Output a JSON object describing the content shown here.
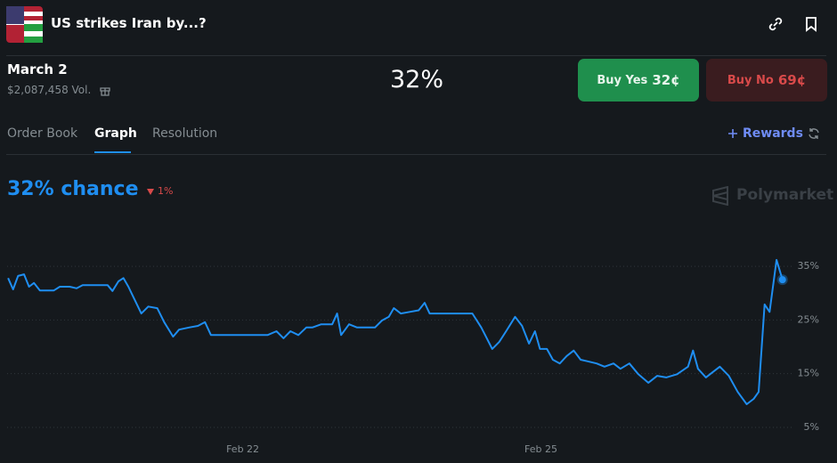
{
  "header": {
    "title": "US strikes Iran by...?"
  },
  "market": {
    "date": "March 2",
    "volume": "$2,087,458 Vol.",
    "probability": "32%",
    "buy_yes": {
      "label": "Buy Yes",
      "price": "32¢"
    },
    "buy_no": {
      "label": "Buy No",
      "price": "69¢"
    }
  },
  "tabs": [
    "Order Book",
    "Graph",
    "Resolution"
  ],
  "rewards": "Rewards",
  "chance": "32% chance",
  "change": "1%",
  "brand": "Polymarket",
  "chart_data": {
    "type": "line",
    "color": "#1f8ef1",
    "x": [
      19.64,
      19.69,
      19.74,
      19.8,
      19.85,
      19.9,
      19.96,
      20.1,
      20.16,
      20.26,
      20.33,
      20.39,
      20.64,
      20.69,
      20.75,
      20.8,
      20.85,
      20.91,
      20.98,
      21.05,
      21.14,
      21.21,
      21.3,
      21.36,
      21.46,
      21.55,
      21.62,
      21.68,
      21.8,
      22.25,
      22.34,
      22.41,
      22.48,
      22.56,
      22.64,
      22.7,
      22.79,
      22.9,
      22.95,
      22.99,
      23.07,
      23.15,
      23.33,
      23.4,
      23.47,
      23.52,
      23.59,
      23.68,
      23.77,
      23.83,
      23.88,
      24.31,
      24.4,
      24.51,
      24.58,
      24.65,
      24.74,
      24.81,
      24.88,
      24.94,
      24.99,
      25.06,
      25.12,
      25.19,
      25.26,
      25.33,
      25.4,
      25.47,
      25.56,
      25.64,
      25.73,
      25.8,
      25.89,
      25.98,
      26.08,
      26.17,
      26.26,
      26.37,
      26.48,
      26.53,
      26.58,
      26.66,
      26.73,
      26.8,
      26.89,
      26.98,
      27.07,
      27.14,
      27.19,
      27.25,
      27.3,
      27.37,
      27.43
    ],
    "values": [
      32.8,
      30.7,
      33.2,
      33.5,
      31.2,
      31.9,
      30.5,
      30.5,
      31.2,
      31.2,
      30.9,
      31.5,
      31.5,
      30.4,
      32.2,
      32.8,
      31.2,
      28.9,
      26.2,
      27.5,
      27.2,
      24.6,
      21.9,
      23.2,
      23.6,
      23.9,
      24.6,
      22.2,
      22.2,
      22.2,
      22.9,
      21.6,
      22.9,
      22.2,
      23.6,
      23.6,
      24.2,
      24.2,
      26.2,
      22.2,
      24.2,
      23.6,
      23.6,
      24.9,
      25.6,
      27.2,
      26.2,
      26.5,
      26.8,
      28.2,
      26.2,
      26.2,
      23.6,
      19.6,
      20.9,
      22.9,
      25.6,
      23.9,
      20.6,
      22.9,
      19.6,
      19.6,
      17.6,
      16.9,
      18.3,
      19.3,
      17.6,
      17.3,
      16.9,
      16.3,
      16.9,
      15.9,
      16.9,
      14.9,
      13.3,
      14.6,
      14.3,
      14.9,
      16.3,
      19.3,
      15.9,
      14.3,
      15.3,
      16.3,
      14.6,
      11.6,
      9.3,
      10.3,
      11.6,
      27.9,
      26.5,
      36.2,
      32.5
    ],
    "xlim": [
      19.63,
      27.45
    ],
    "ylim": [
      3,
      38
    ],
    "xticks": [
      {
        "value": 22,
        "label": "Feb 22"
      },
      {
        "value": 25,
        "label": "Feb 25"
      }
    ],
    "yticks": [
      {
        "value": 5,
        "label": "5%"
      },
      {
        "value": 15,
        "label": "15%"
      },
      {
        "value": 25,
        "label": "25%"
      },
      {
        "value": 35,
        "label": "35%"
      }
    ],
    "grid": true
  }
}
